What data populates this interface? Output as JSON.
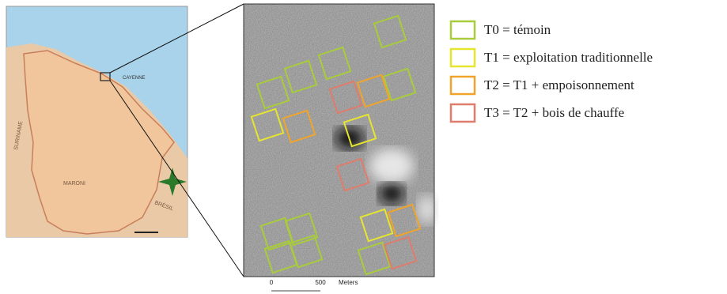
{
  "legend": {
    "items": [
      {
        "label": "T0 = témoin",
        "color": "#a8cc3a"
      },
      {
        "label": "T1 = exploitation traditionnelle",
        "color": "#e6e62e"
      },
      {
        "label": "T2 = T1 + empoisonnement",
        "color": "#f0a52a"
      },
      {
        "label": "T3 = T2 + bois de chauffe",
        "color": "#df7c6c"
      }
    ]
  },
  "map": {
    "labels": [
      "CAYENNE",
      "SURINAME",
      "BRÉSIL",
      "MARONI"
    ]
  },
  "scale_bar": {
    "labels": [
      "0",
      "500",
      "Meters"
    ]
  }
}
